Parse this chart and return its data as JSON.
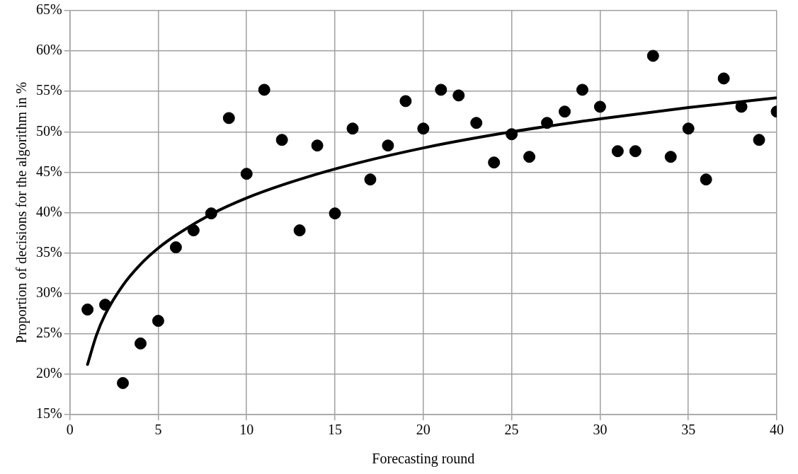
{
  "chart_data": {
    "type": "scatter",
    "xlabel": "Forecasting round",
    "ylabel": "Proportion of decisions for the algorithm in %",
    "xlim": [
      0,
      40
    ],
    "xticks": [
      0,
      5,
      10,
      15,
      20,
      25,
      30,
      35,
      40
    ],
    "ylim": [
      15,
      65
    ],
    "yticks": [
      {
        "value": 15,
        "label": "15%"
      },
      {
        "value": 20,
        "label": "20%"
      },
      {
        "value": 25,
        "label": "25%"
      },
      {
        "value": 30,
        "label": "30%"
      },
      {
        "value": 35,
        "label": "35%"
      },
      {
        "value": 40,
        "label": "40%"
      },
      {
        "value": 45,
        "label": "45%"
      },
      {
        "value": 50,
        "label": "50%"
      },
      {
        "value": 55,
        "label": "55%"
      },
      {
        "value": 60,
        "label": "60%"
      },
      {
        "value": 65,
        "label": "65%"
      }
    ],
    "grid": true,
    "legend": false,
    "marker": "circle",
    "series": [
      {
        "type": "scatter",
        "color": "#000000",
        "x": [
          1,
          2,
          3,
          4,
          5,
          6,
          7,
          8,
          9,
          10,
          11,
          12,
          13,
          14,
          15,
          16,
          17,
          18,
          19,
          20,
          21,
          22,
          23,
          24,
          25,
          26,
          27,
          28,
          29,
          30,
          31,
          32,
          33,
          34,
          35,
          36,
          37,
          38,
          39,
          40
        ],
        "values": [
          28,
          28.6,
          18.9,
          23.8,
          26.6,
          35.7,
          37.8,
          39.9,
          51.7,
          44.8,
          55.2,
          49,
          37.8,
          48.3,
          39.9,
          50.4,
          44.1,
          48.3,
          53.8,
          50.4,
          55.2,
          54.5,
          51.1,
          46.2,
          49.7,
          46.9,
          51.1,
          52.5,
          55.2,
          53.1,
          47.6,
          47.6,
          59.4,
          46.9,
          50.4,
          44.1,
          56.6,
          53.1,
          49,
          52.5
        ]
      },
      {
        "type": "line",
        "color": "#000000",
        "marker": "none",
        "x": [
          1,
          1.5,
          2,
          3,
          4,
          5,
          6,
          8,
          10,
          12,
          15,
          20,
          25,
          30,
          35,
          40
        ],
        "values": [
          21.2,
          24.8,
          27.4,
          31,
          33.6,
          35.6,
          37.2,
          39.8,
          41.8,
          43.4,
          45.4,
          48,
          50,
          51.6,
          53,
          54.2
        ]
      }
    ]
  }
}
